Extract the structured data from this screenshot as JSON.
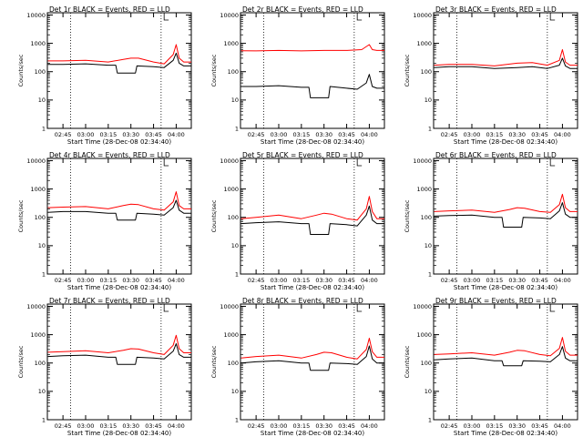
{
  "chart_data": [
    {
      "type": "line",
      "title": "Det 1r BLACK = Events, RED = LLD",
      "xlabel": "Start Time (28-Dec-08 02:34:40)",
      "ylabel": "Counts/sec",
      "yscale": "log",
      "ylim": [
        1,
        12000
      ],
      "xlim": [
        "02:34:40",
        "04:10:00"
      ],
      "x_ticks": [
        "02:45",
        "03:00",
        "03:15",
        "03:30",
        "03:45",
        "04:00"
      ],
      "y_ticks": [
        "1",
        "10",
        "100",
        "1000",
        "10000"
      ],
      "vlines": [
        "02:50",
        "03:50"
      ],
      "series": [
        {
          "color": "#ff0000",
          "x": [
            "02:35",
            "02:45",
            "03:00",
            "03:15",
            "03:25",
            "03:30",
            "03:35",
            "03:45",
            "03:52",
            "03:58",
            "04:00",
            "04:02",
            "04:05",
            "04:10"
          ],
          "values": [
            240,
            240,
            250,
            220,
            270,
            300,
            300,
            220,
            190,
            400,
            900,
            300,
            220,
            220
          ]
        },
        {
          "color": "#000000",
          "x": [
            "02:35",
            "02:45",
            "03:00",
            "03:15",
            "03:20",
            "03:21",
            "03:33",
            "03:34",
            "03:45",
            "03:52",
            "03:58",
            "04:00",
            "04:02",
            "04:05",
            "04:10"
          ],
          "values": [
            180,
            180,
            190,
            170,
            170,
            90,
            90,
            160,
            150,
            140,
            250,
            450,
            200,
            160,
            160
          ]
        }
      ]
    },
    {
      "type": "line",
      "title": "Det 2r BLACK = Events, RED = LLD",
      "xlabel": "Start Time (28-Dec-08 02:34:40)",
      "ylabel": "Counts/sec",
      "yscale": "log",
      "ylim": [
        1,
        12000
      ],
      "xlim": [
        "02:34:40",
        "04:10:00"
      ],
      "x_ticks": [
        "02:45",
        "03:00",
        "03:15",
        "03:30",
        "03:45",
        "04:00"
      ],
      "y_ticks": [
        "1",
        "10",
        "100",
        "1000",
        "10000"
      ],
      "vlines": [
        "02:50",
        "03:50"
      ],
      "series": [
        {
          "color": "#ff0000",
          "x": [
            "02:35",
            "02:45",
            "03:00",
            "03:15",
            "03:30",
            "03:45",
            "03:55",
            "04:00",
            "04:02",
            "04:05",
            "04:10"
          ],
          "values": [
            550,
            540,
            560,
            540,
            560,
            560,
            600,
            900,
            600,
            560,
            560
          ]
        },
        {
          "color": "#000000",
          "x": [
            "02:35",
            "02:45",
            "03:00",
            "03:15",
            "03:20",
            "03:21",
            "03:33",
            "03:34",
            "03:45",
            "03:52",
            "03:58",
            "04:00",
            "04:02",
            "04:05",
            "04:10"
          ],
          "values": [
            30,
            30,
            32,
            28,
            28,
            12,
            12,
            30,
            26,
            24,
            40,
            80,
            30,
            26,
            26
          ]
        }
      ]
    },
    {
      "type": "line",
      "title": "Det 3r BLACK = Events, RED = LLD",
      "xlabel": "Start Time (28-Dec-08 02:34:40)",
      "ylabel": "Counts/sec",
      "yscale": "log",
      "ylim": [
        1,
        12000
      ],
      "xlim": [
        "02:34:40",
        "04:10:00"
      ],
      "x_ticks": [
        "02:45",
        "03:00",
        "03:15",
        "03:30",
        "03:45",
        "04:00"
      ],
      "y_ticks": [
        "1",
        "10",
        "100",
        "1000",
        "10000"
      ],
      "vlines": [
        "02:50",
        "03:50"
      ],
      "series": [
        {
          "color": "#ff0000",
          "x": [
            "02:35",
            "02:45",
            "03:00",
            "03:15",
            "03:30",
            "03:40",
            "03:50",
            "03:58",
            "04:00",
            "04:02",
            "04:05",
            "04:10"
          ],
          "values": [
            170,
            180,
            180,
            160,
            200,
            210,
            170,
            250,
            600,
            220,
            170,
            170
          ]
        },
        {
          "color": "#000000",
          "x": [
            "02:35",
            "02:45",
            "03:00",
            "03:15",
            "03:30",
            "03:40",
            "03:50",
            "03:58",
            "04:00",
            "04:02",
            "04:05",
            "04:10"
          ],
          "values": [
            140,
            150,
            150,
            130,
            140,
            150,
            130,
            170,
            300,
            160,
            130,
            130
          ]
        }
      ]
    },
    {
      "type": "line",
      "title": "Det 4r BLACK = Events, RED = LLD",
      "xlabel": "Start Time (28-Dec-08 02:34:40)",
      "ylabel": "Counts/sec",
      "yscale": "log",
      "ylim": [
        1,
        12000
      ],
      "xlim": [
        "02:34:40",
        "04:10:00"
      ],
      "x_ticks": [
        "02:45",
        "03:00",
        "03:15",
        "03:30",
        "03:45",
        "04:00"
      ],
      "y_ticks": [
        "1",
        "10",
        "100",
        "1000",
        "10000"
      ],
      "vlines": [
        "02:50",
        "03:50"
      ],
      "series": [
        {
          "color": "#ff0000",
          "x": [
            "02:35",
            "02:45",
            "03:00",
            "03:15",
            "03:25",
            "03:30",
            "03:35",
            "03:45",
            "03:52",
            "03:58",
            "04:00",
            "04:02",
            "04:05",
            "04:10"
          ],
          "values": [
            220,
            230,
            240,
            200,
            260,
            290,
            280,
            200,
            180,
            350,
            800,
            260,
            200,
            200
          ]
        },
        {
          "color": "#000000",
          "x": [
            "02:35",
            "02:45",
            "03:00",
            "03:15",
            "03:20",
            "03:21",
            "03:33",
            "03:34",
            "03:45",
            "03:52",
            "03:58",
            "04:00",
            "04:02",
            "04:05",
            "04:10"
          ],
          "values": [
            150,
            160,
            160,
            140,
            140,
            80,
            80,
            140,
            130,
            120,
            220,
            400,
            180,
            140,
            140
          ]
        }
      ]
    },
    {
      "type": "line",
      "title": "Det 5r BLACK = Events, RED = LLD",
      "xlabel": "Start Time (28-Dec-08 02:34:40)",
      "ylabel": "Counts/sec",
      "yscale": "log",
      "ylim": [
        1,
        12000
      ],
      "xlim": [
        "02:34:40",
        "04:10:00"
      ],
      "x_ticks": [
        "02:45",
        "03:00",
        "03:15",
        "03:30",
        "03:45",
        "04:00"
      ],
      "y_ticks": [
        "1",
        "10",
        "100",
        "1000",
        "10000"
      ],
      "vlines": [
        "02:50",
        "03:50"
      ],
      "series": [
        {
          "color": "#ff0000",
          "x": [
            "02:35",
            "02:45",
            "03:00",
            "03:15",
            "03:25",
            "03:30",
            "03:35",
            "03:45",
            "03:52",
            "03:58",
            "04:00",
            "04:02",
            "04:05",
            "04:10"
          ],
          "values": [
            90,
            100,
            120,
            90,
            120,
            140,
            130,
            90,
            80,
            200,
            550,
            160,
            90,
            90
          ]
        },
        {
          "color": "#000000",
          "x": [
            "02:35",
            "02:45",
            "03:00",
            "03:15",
            "03:20",
            "03:21",
            "03:33",
            "03:34",
            "03:45",
            "03:52",
            "03:58",
            "04:00",
            "04:02",
            "04:05",
            "04:10"
          ],
          "values": [
            60,
            65,
            70,
            60,
            60,
            25,
            25,
            60,
            55,
            50,
            120,
            250,
            80,
            60,
            60
          ]
        }
      ]
    },
    {
      "type": "line",
      "title": "Det 6r BLACK = Events, RED = LLD",
      "xlabel": "Start Time (28-Dec-08 02:34:40)",
      "ylabel": "Counts/sec",
      "yscale": "log",
      "ylim": [
        1,
        12000
      ],
      "xlim": [
        "02:34:40",
        "04:10:00"
      ],
      "x_ticks": [
        "02:45",
        "03:00",
        "03:15",
        "03:30",
        "03:45",
        "04:00"
      ],
      "y_ticks": [
        "1",
        "10",
        "100",
        "1000",
        "10000"
      ],
      "vlines": [
        "02:50",
        "03:50"
      ],
      "series": [
        {
          "color": "#ff0000",
          "x": [
            "02:35",
            "02:45",
            "03:00",
            "03:15",
            "03:25",
            "03:30",
            "03:35",
            "03:45",
            "03:52",
            "03:58",
            "04:00",
            "04:02",
            "04:05",
            "04:10"
          ],
          "values": [
            160,
            170,
            180,
            150,
            190,
            220,
            210,
            160,
            150,
            280,
            650,
            220,
            160,
            160
          ]
        },
        {
          "color": "#000000",
          "x": [
            "02:35",
            "02:45",
            "03:00",
            "03:15",
            "03:20",
            "03:21",
            "03:33",
            "03:34",
            "03:45",
            "03:52",
            "03:58",
            "04:00",
            "04:02",
            "04:05",
            "04:10"
          ],
          "values": [
            110,
            115,
            120,
            100,
            100,
            45,
            45,
            100,
            95,
            90,
            170,
            330,
            130,
            100,
            100
          ]
        }
      ]
    },
    {
      "type": "line",
      "title": "Det 7r BLACK = Events, RED = LLD",
      "xlabel": "Start Time (28-Dec-08 02:34:40)",
      "ylabel": "Counts/sec",
      "yscale": "log",
      "ylim": [
        1,
        12000
      ],
      "xlim": [
        "02:34:40",
        "04:10:00"
      ],
      "x_ticks": [
        "02:45",
        "03:00",
        "03:15",
        "03:30",
        "03:45",
        "04:00"
      ],
      "y_ticks": [
        "1",
        "10",
        "100",
        "1000",
        "10000"
      ],
      "vlines": [
        "02:50",
        "03:50"
      ],
      "series": [
        {
          "color": "#ff0000",
          "x": [
            "02:35",
            "02:45",
            "03:00",
            "03:15",
            "03:25",
            "03:30",
            "03:35",
            "03:45",
            "03:52",
            "03:58",
            "04:00",
            "04:02",
            "04:05",
            "04:10"
          ],
          "values": [
            240,
            250,
            270,
            230,
            280,
            320,
            310,
            230,
            200,
            420,
            950,
            320,
            230,
            230
          ]
        },
        {
          "color": "#000000",
          "x": [
            "02:35",
            "02:45",
            "03:00",
            "03:15",
            "03:20",
            "03:21",
            "03:33",
            "03:34",
            "03:45",
            "03:52",
            "03:58",
            "04:00",
            "04:02",
            "04:05",
            "04:10"
          ],
          "values": [
            170,
            180,
            190,
            160,
            160,
            90,
            90,
            160,
            150,
            140,
            260,
            480,
            200,
            160,
            160
          ]
        }
      ]
    },
    {
      "type": "line",
      "title": "Det 8r BLACK = Events, RED = LLD",
      "xlabel": "Start Time (28-Dec-08 02:34:40)",
      "ylabel": "Counts/sec",
      "yscale": "log",
      "ylim": [
        1,
        12000
      ],
      "xlim": [
        "02:34:40",
        "04:10:00"
      ],
      "x_ticks": [
        "02:45",
        "03:00",
        "03:15",
        "03:30",
        "03:45",
        "04:00"
      ],
      "y_ticks": [
        "1",
        "10",
        "100",
        "1000",
        "10000"
      ],
      "vlines": [
        "02:50",
        "03:50"
      ],
      "series": [
        {
          "color": "#ff0000",
          "x": [
            "02:35",
            "02:45",
            "03:00",
            "03:15",
            "03:25",
            "03:30",
            "03:35",
            "03:45",
            "03:52",
            "03:58",
            "04:00",
            "04:02",
            "04:05",
            "04:10"
          ],
          "values": [
            150,
            170,
            190,
            150,
            200,
            240,
            230,
            160,
            140,
            300,
            750,
            250,
            160,
            160
          ]
        },
        {
          "color": "#000000",
          "x": [
            "02:35",
            "02:45",
            "03:00",
            "03:15",
            "03:20",
            "03:21",
            "03:33",
            "03:34",
            "03:45",
            "03:52",
            "03:58",
            "04:00",
            "04:02",
            "04:05",
            "04:10"
          ],
          "values": [
            100,
            110,
            120,
            100,
            100,
            55,
            55,
            100,
            95,
            90,
            170,
            400,
            140,
            100,
            100
          ]
        }
      ]
    },
    {
      "type": "line",
      "title": "Det 9r BLACK = Events, RED = LLD",
      "xlabel": "Start Time (28-Dec-08 02:34:40)",
      "ylabel": "Counts/sec",
      "yscale": "log",
      "ylim": [
        1,
        12000
      ],
      "xlim": [
        "02:34:40",
        "04:10:00"
      ],
      "x_ticks": [
        "02:45",
        "03:00",
        "03:15",
        "03:30",
        "03:45",
        "04:00"
      ],
      "y_ticks": [
        "1",
        "10",
        "100",
        "1000",
        "10000"
      ],
      "vlines": [
        "02:50",
        "03:50"
      ],
      "series": [
        {
          "color": "#ff0000",
          "x": [
            "02:35",
            "02:45",
            "03:00",
            "03:15",
            "03:25",
            "03:30",
            "03:35",
            "03:45",
            "03:52",
            "03:58",
            "04:00",
            "04:02",
            "04:05",
            "04:10"
          ],
          "values": [
            200,
            210,
            230,
            190,
            240,
            280,
            270,
            200,
            180,
            330,
            800,
            260,
            190,
            190
          ]
        },
        {
          "color": "#000000",
          "x": [
            "02:35",
            "02:45",
            "03:00",
            "03:15",
            "03:20",
            "03:21",
            "03:33",
            "03:34",
            "03:45",
            "03:52",
            "03:58",
            "04:00",
            "04:02",
            "04:05",
            "04:10"
          ],
          "values": [
            130,
            140,
            150,
            120,
            120,
            80,
            80,
            120,
            115,
            110,
            200,
            380,
            150,
            120,
            120
          ]
        }
      ]
    }
  ]
}
